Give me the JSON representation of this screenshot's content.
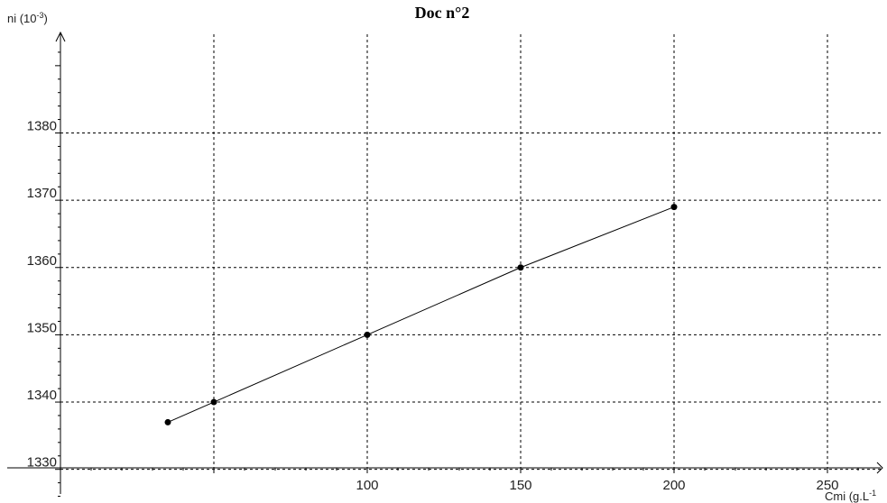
{
  "chart_data": {
    "type": "line",
    "title": "Doc n°2",
    "ylabel": "ni (10",
    "ylabel_exp": "-3",
    "ylabel_close": ")",
    "xlabel": "Cmi (g.L",
    "xlabel_exp": "-1",
    "xlim": [
      0,
      270
    ],
    "ylim": [
      1325,
      1394
    ],
    "x_ticks": [
      100,
      150,
      200,
      250
    ],
    "y_ticks": [
      1330,
      1340,
      1350,
      1360,
      1370,
      1380
    ],
    "x_gridlines": [
      50,
      100,
      150,
      200,
      250
    ],
    "y_gridlines": [
      1330,
      1340,
      1350,
      1360,
      1370,
      1380
    ],
    "grid": true,
    "grid_style": "dashed",
    "series": [
      {
        "x": [
          35,
          50,
          100,
          150,
          200
        ],
        "y": [
          1337,
          1340,
          1350,
          1360,
          1369
        ],
        "color": "#000000"
      }
    ]
  }
}
